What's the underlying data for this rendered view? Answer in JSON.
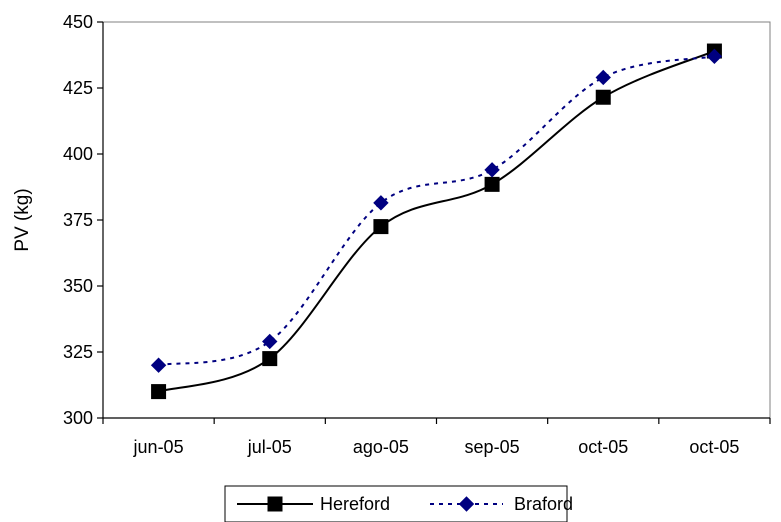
{
  "chart_data": {
    "type": "line",
    "categories": [
      "jun-05",
      "jul-05",
      "ago-05",
      "sep-05",
      "oct-05",
      "oct-05"
    ],
    "ylabel": "PV (kg)",
    "xlabel": "",
    "ylim": [
      300,
      450
    ],
    "yticks": [
      300,
      325,
      350,
      375,
      400,
      425,
      450
    ],
    "grid": false,
    "legend_position": "bottom",
    "series": [
      {
        "name": "Hereford",
        "values": [
          310,
          322.5,
          372.5,
          388.5,
          421.5,
          439
        ],
        "color": "#000000",
        "line_style": "solid",
        "marker": "square"
      },
      {
        "name": "Braford",
        "values": [
          320,
          329,
          381.5,
          394,
          429,
          437
        ],
        "color": "#000080",
        "line_style": "dotted",
        "marker": "diamond"
      }
    ]
  }
}
